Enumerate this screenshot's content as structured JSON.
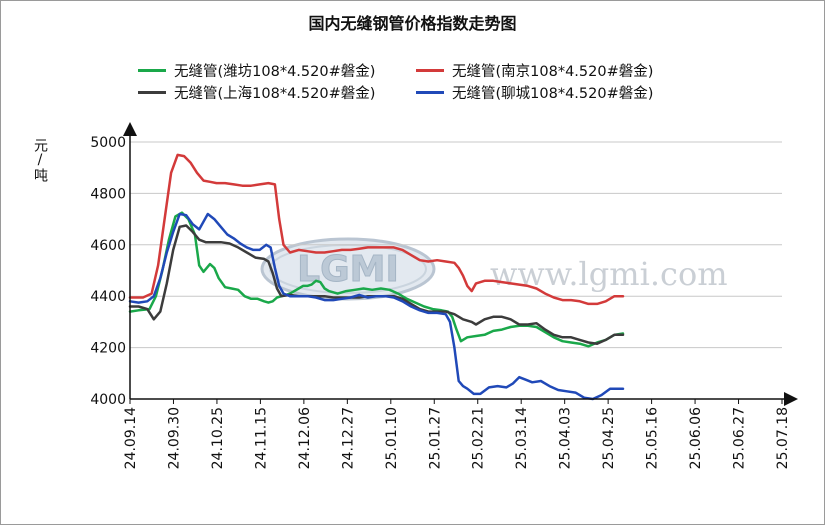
{
  "title": "国内无缝钢管价格指数走势图",
  "ylabel": "元/吨",
  "watermark": {
    "logo_text": "LGMI",
    "url": "www.lgmi.com"
  },
  "chart_data": {
    "type": "line",
    "title": "国内无缝钢管价格指数走势图",
    "ylabel": "元/吨",
    "xlabel": "",
    "ylim": [
      4000,
      5000
    ],
    "yticks": [
      4000,
      4200,
      4400,
      4600,
      4800,
      5000
    ],
    "grid": "horizontal",
    "legend_position": "top",
    "categories": [
      "24.09.14",
      "24.09.30",
      "24.10.25",
      "24.11.15",
      "24.12.06",
      "24.12.27",
      "25.01.10",
      "25.01.27",
      "25.02.21",
      "25.03.14",
      "25.04.03",
      "25.04.25",
      "25.05.16",
      "25.06.06",
      "25.06.27",
      "25.07.18"
    ],
    "series": [
      {
        "name": "无缝管(潍坊108*4.520#磐金)",
        "color": "#1aa84a",
        "values": [
          [
            0,
            4340
          ],
          [
            0.2,
            4345
          ],
          [
            0.45,
            4350
          ],
          [
            0.6,
            4400
          ],
          [
            0.75,
            4500
          ],
          [
            0.9,
            4620
          ],
          [
            1.05,
            4710
          ],
          [
            1.2,
            4725
          ],
          [
            1.35,
            4700
          ],
          [
            1.5,
            4640
          ],
          [
            1.6,
            4520
          ],
          [
            1.7,
            4495
          ],
          [
            1.85,
            4525
          ],
          [
            1.95,
            4510
          ],
          [
            2.05,
            4470
          ],
          [
            2.2,
            4435
          ],
          [
            2.35,
            4430
          ],
          [
            2.5,
            4425
          ],
          [
            2.65,
            4400
          ],
          [
            2.8,
            4390
          ],
          [
            2.95,
            4390
          ],
          [
            3.1,
            4380
          ],
          [
            3.2,
            4375
          ],
          [
            3.3,
            4380
          ],
          [
            3.4,
            4395
          ],
          [
            3.5,
            4400
          ],
          [
            3.6,
            4405
          ],
          [
            3.7,
            4410
          ],
          [
            3.8,
            4420
          ],
          [
            3.9,
            4430
          ],
          [
            4.0,
            4440
          ],
          [
            4.1,
            4440
          ],
          [
            4.2,
            4445
          ],
          [
            4.3,
            4460
          ],
          [
            4.4,
            4455
          ],
          [
            4.5,
            4430
          ],
          [
            4.6,
            4420
          ],
          [
            4.8,
            4410
          ],
          [
            5.0,
            4420
          ],
          [
            5.2,
            4425
          ],
          [
            5.4,
            4430
          ],
          [
            5.6,
            4425
          ],
          [
            5.8,
            4430
          ],
          [
            6.0,
            4425
          ],
          [
            6.2,
            4410
          ],
          [
            6.4,
            4390
          ],
          [
            6.6,
            4375
          ],
          [
            6.8,
            4360
          ],
          [
            7.0,
            4350
          ],
          [
            7.2,
            4345
          ],
          [
            7.35,
            4340
          ],
          [
            7.45,
            4320
          ],
          [
            7.55,
            4270
          ],
          [
            7.65,
            4225
          ],
          [
            7.8,
            4240
          ],
          [
            8.0,
            4245
          ],
          [
            8.2,
            4250
          ],
          [
            8.4,
            4265
          ],
          [
            8.6,
            4270
          ],
          [
            8.8,
            4280
          ],
          [
            9.0,
            4285
          ],
          [
            9.2,
            4285
          ],
          [
            9.4,
            4280
          ],
          [
            9.6,
            4260
          ],
          [
            9.8,
            4240
          ],
          [
            10.0,
            4225
          ],
          [
            10.2,
            4220
          ],
          [
            10.4,
            4215
          ],
          [
            10.6,
            4205
          ],
          [
            10.8,
            4220
          ],
          [
            11.0,
            4230
          ],
          [
            11.2,
            4250
          ],
          [
            11.4,
            4255
          ]
        ]
      },
      {
        "name": "无缝管(南京108*4.520#磐金)",
        "color": "#d33a3a",
        "values": [
          [
            0,
            4395
          ],
          [
            0.3,
            4395
          ],
          [
            0.5,
            4410
          ],
          [
            0.65,
            4520
          ],
          [
            0.8,
            4700
          ],
          [
            0.95,
            4880
          ],
          [
            1.1,
            4950
          ],
          [
            1.25,
            4945
          ],
          [
            1.4,
            4920
          ],
          [
            1.55,
            4880
          ],
          [
            1.7,
            4850
          ],
          [
            1.85,
            4845
          ],
          [
            2.0,
            4840
          ],
          [
            2.2,
            4840
          ],
          [
            2.4,
            4835
          ],
          [
            2.6,
            4830
          ],
          [
            2.8,
            4830
          ],
          [
            3.0,
            4835
          ],
          [
            3.2,
            4840
          ],
          [
            3.35,
            4835
          ],
          [
            3.45,
            4700
          ],
          [
            3.55,
            4600
          ],
          [
            3.7,
            4570
          ],
          [
            3.9,
            4580
          ],
          [
            4.1,
            4575
          ],
          [
            4.3,
            4570
          ],
          [
            4.5,
            4570
          ],
          [
            4.7,
            4575
          ],
          [
            4.9,
            4580
          ],
          [
            5.1,
            4580
          ],
          [
            5.3,
            4585
          ],
          [
            5.5,
            4590
          ],
          [
            5.7,
            4590
          ],
          [
            5.9,
            4590
          ],
          [
            6.1,
            4590
          ],
          [
            6.3,
            4580
          ],
          [
            6.5,
            4560
          ],
          [
            6.7,
            4540
          ],
          [
            6.9,
            4535
          ],
          [
            7.1,
            4540
          ],
          [
            7.3,
            4535
          ],
          [
            7.5,
            4530
          ],
          [
            7.6,
            4510
          ],
          [
            7.7,
            4480
          ],
          [
            7.8,
            4440
          ],
          [
            7.9,
            4420
          ],
          [
            8.0,
            4450
          ],
          [
            8.2,
            4460
          ],
          [
            8.4,
            4460
          ],
          [
            8.6,
            4455
          ],
          [
            8.8,
            4450
          ],
          [
            9.0,
            4445
          ],
          [
            9.2,
            4440
          ],
          [
            9.4,
            4430
          ],
          [
            9.6,
            4410
          ],
          [
            9.8,
            4395
          ],
          [
            10.0,
            4385
          ],
          [
            10.2,
            4385
          ],
          [
            10.4,
            4380
          ],
          [
            10.6,
            4370
          ],
          [
            10.8,
            4370
          ],
          [
            11.0,
            4380
          ],
          [
            11.2,
            4400
          ],
          [
            11.4,
            4400
          ]
        ]
      },
      {
        "name": "无缝管(上海108*4.520#磐金)",
        "color": "#3c3c3c",
        "values": [
          [
            0,
            4360
          ],
          [
            0.2,
            4360
          ],
          [
            0.4,
            4350
          ],
          [
            0.55,
            4310
          ],
          [
            0.7,
            4340
          ],
          [
            0.85,
            4450
          ],
          [
            1.0,
            4580
          ],
          [
            1.15,
            4670
          ],
          [
            1.3,
            4675
          ],
          [
            1.45,
            4650
          ],
          [
            1.6,
            4620
          ],
          [
            1.75,
            4610
          ],
          [
            1.9,
            4610
          ],
          [
            2.1,
            4610
          ],
          [
            2.3,
            4605
          ],
          [
            2.5,
            4590
          ],
          [
            2.7,
            4570
          ],
          [
            2.9,
            4550
          ],
          [
            3.1,
            4545
          ],
          [
            3.2,
            4535
          ],
          [
            3.3,
            4490
          ],
          [
            3.4,
            4430
          ],
          [
            3.5,
            4400
          ],
          [
            3.7,
            4405
          ],
          [
            3.9,
            4400
          ],
          [
            4.1,
            4400
          ],
          [
            4.3,
            4400
          ],
          [
            4.5,
            4400
          ],
          [
            4.7,
            4395
          ],
          [
            4.9,
            4395
          ],
          [
            5.1,
            4395
          ],
          [
            5.3,
            4395
          ],
          [
            5.5,
            4400
          ],
          [
            5.7,
            4400
          ],
          [
            5.9,
            4400
          ],
          [
            6.1,
            4400
          ],
          [
            6.3,
            4390
          ],
          [
            6.5,
            4370
          ],
          [
            6.7,
            4350
          ],
          [
            6.9,
            4340
          ],
          [
            7.1,
            4340
          ],
          [
            7.3,
            4340
          ],
          [
            7.5,
            4330
          ],
          [
            7.7,
            4310
          ],
          [
            7.9,
            4300
          ],
          [
            8.0,
            4290
          ],
          [
            8.2,
            4310
          ],
          [
            8.4,
            4320
          ],
          [
            8.6,
            4320
          ],
          [
            8.8,
            4310
          ],
          [
            9.0,
            4290
          ],
          [
            9.2,
            4290
          ],
          [
            9.4,
            4295
          ],
          [
            9.6,
            4270
          ],
          [
            9.8,
            4250
          ],
          [
            10.0,
            4240
          ],
          [
            10.2,
            4240
          ],
          [
            10.4,
            4230
          ],
          [
            10.6,
            4220
          ],
          [
            10.8,
            4215
          ],
          [
            11.0,
            4230
          ],
          [
            11.2,
            4250
          ],
          [
            11.4,
            4250
          ]
        ]
      },
      {
        "name": "无缝管(聊城108*4.520#磐金)",
        "color": "#2049b8",
        "values": [
          [
            0,
            4380
          ],
          [
            0.2,
            4375
          ],
          [
            0.4,
            4380
          ],
          [
            0.55,
            4400
          ],
          [
            0.7,
            4470
          ],
          [
            0.85,
            4570
          ],
          [
            1.0,
            4650
          ],
          [
            1.15,
            4720
          ],
          [
            1.3,
            4715
          ],
          [
            1.45,
            4680
          ],
          [
            1.6,
            4660
          ],
          [
            1.7,
            4690
          ],
          [
            1.8,
            4720
          ],
          [
            1.95,
            4700
          ],
          [
            2.1,
            4670
          ],
          [
            2.25,
            4640
          ],
          [
            2.4,
            4625
          ],
          [
            2.55,
            4605
          ],
          [
            2.7,
            4590
          ],
          [
            2.85,
            4580
          ],
          [
            3.0,
            4580
          ],
          [
            3.15,
            4600
          ],
          [
            3.25,
            4590
          ],
          [
            3.35,
            4510
          ],
          [
            3.45,
            4440
          ],
          [
            3.55,
            4410
          ],
          [
            3.7,
            4400
          ],
          [
            3.9,
            4400
          ],
          [
            4.1,
            4400
          ],
          [
            4.3,
            4395
          ],
          [
            4.5,
            4385
          ],
          [
            4.7,
            4385
          ],
          [
            4.9,
            4390
          ],
          [
            5.1,
            4395
          ],
          [
            5.3,
            4405
          ],
          [
            5.5,
            4395
          ],
          [
            5.7,
            4400
          ],
          [
            5.9,
            4400
          ],
          [
            6.1,
            4395
          ],
          [
            6.3,
            4380
          ],
          [
            6.5,
            4360
          ],
          [
            6.7,
            4345
          ],
          [
            6.9,
            4335
          ],
          [
            7.1,
            4335
          ],
          [
            7.3,
            4330
          ],
          [
            7.4,
            4300
          ],
          [
            7.5,
            4200
          ],
          [
            7.6,
            4070
          ],
          [
            7.7,
            4050
          ],
          [
            7.8,
            4040
          ],
          [
            7.95,
            4020
          ],
          [
            8.1,
            4020
          ],
          [
            8.3,
            4045
          ],
          [
            8.5,
            4050
          ],
          [
            8.7,
            4045
          ],
          [
            8.85,
            4060
          ],
          [
            9.0,
            4085
          ],
          [
            9.15,
            4075
          ],
          [
            9.3,
            4065
          ],
          [
            9.5,
            4070
          ],
          [
            9.7,
            4050
          ],
          [
            9.9,
            4035
          ],
          [
            10.1,
            4030
          ],
          [
            10.3,
            4025
          ],
          [
            10.5,
            4005
          ],
          [
            10.7,
            4000
          ],
          [
            10.9,
            4015
          ],
          [
            11.1,
            4040
          ],
          [
            11.3,
            4040
          ],
          [
            11.4,
            4040
          ]
        ]
      }
    ]
  }
}
